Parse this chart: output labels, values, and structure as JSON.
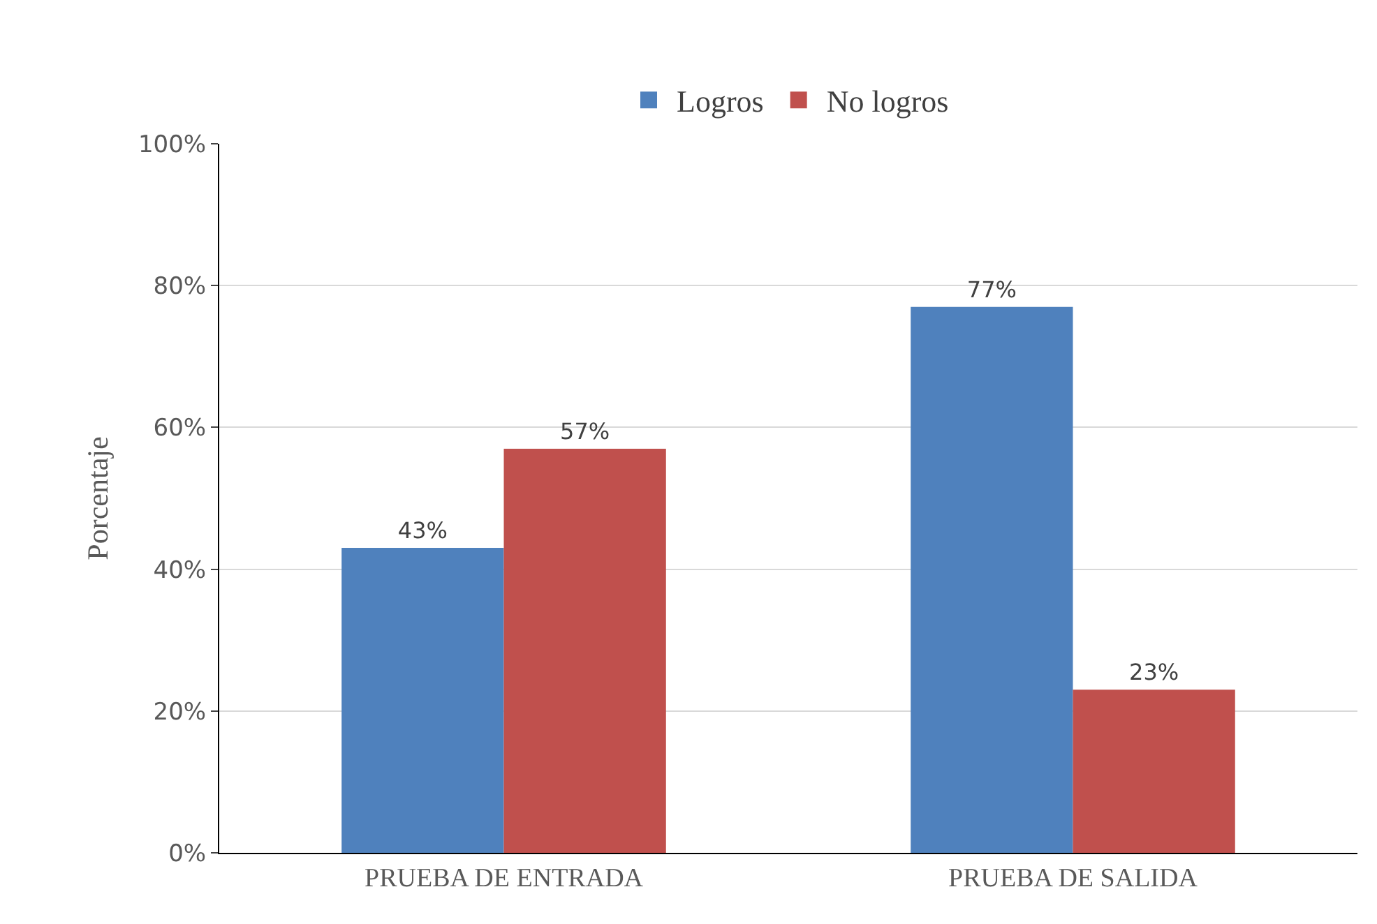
{
  "chart_data": {
    "type": "bar",
    "ylabel": "Porcentaje",
    "categories": [
      "PRUEBA DE ENTRADA",
      "PRUEBA DE SALIDA"
    ],
    "series": [
      {
        "name": "Logros",
        "color": "#4f81bd",
        "values": [
          43,
          77
        ],
        "value_labels": [
          "43%",
          "77%"
        ]
      },
      {
        "name": "No logros",
        "color": "#c0504d",
        "values": [
          57,
          23
        ],
        "value_labels": [
          "57%",
          "23%"
        ]
      }
    ],
    "ylim": [
      0,
      100
    ],
    "yticks": [
      {
        "value": 0,
        "label": "0%"
      },
      {
        "value": 20,
        "label": "20%"
      },
      {
        "value": 40,
        "label": "40%"
      },
      {
        "value": 60,
        "label": "60%"
      },
      {
        "value": 80,
        "label": "80%"
      },
      {
        "value": 100,
        "label": "100%"
      }
    ],
    "grid": "y",
    "legend": "top"
  }
}
